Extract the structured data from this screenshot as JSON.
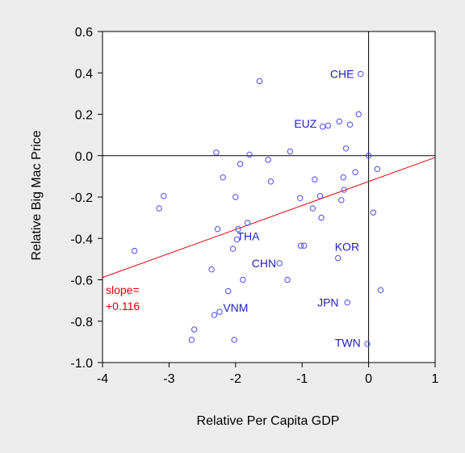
{
  "chart_data": {
    "type": "scatter",
    "xlabel": "Relative Per Capita GDP",
    "ylabel": "Relative Big Mac Price",
    "xlim": [
      -4,
      1
    ],
    "ylim": [
      -1.0,
      0.6
    ],
    "x_ticks": [
      "-4",
      "-3",
      "-2",
      "-1",
      "0",
      "1"
    ],
    "y_ticks": [
      "-1.0",
      "-0.8",
      "-0.6",
      "-0.4",
      "-0.2",
      "0.0",
      "0.2",
      "0.4",
      "0.6"
    ],
    "points": [
      {
        "x": -3.52,
        "y": -0.46
      },
      {
        "x": -3.15,
        "y": -0.255
      },
      {
        "x": -3.08,
        "y": -0.195
      },
      {
        "x": -2.66,
        "y": -0.89
      },
      {
        "x": -2.62,
        "y": -0.84
      },
      {
        "x": -2.36,
        "y": -0.55
      },
      {
        "x": -2.32,
        "y": -0.77
      },
      {
        "x": -2.29,
        "y": 0.015
      },
      {
        "x": -2.27,
        "y": -0.355
      },
      {
        "x": -2.24,
        "y": -0.755
      },
      {
        "x": -2.19,
        "y": -0.105
      },
      {
        "x": -2.11,
        "y": -0.655
      },
      {
        "x": -2.04,
        "y": -0.45
      },
      {
        "x": -2.02,
        "y": -0.89
      },
      {
        "x": -2.0,
        "y": -0.2
      },
      {
        "x": -1.98,
        "y": -0.405
      },
      {
        "x": -1.96,
        "y": -0.355
      },
      {
        "x": -1.93,
        "y": -0.04
      },
      {
        "x": -1.89,
        "y": -0.6
      },
      {
        "x": -1.82,
        "y": -0.325
      },
      {
        "x": -1.79,
        "y": 0.005
      },
      {
        "x": -1.64,
        "y": 0.36
      },
      {
        "x": -1.51,
        "y": -0.02
      },
      {
        "x": -1.47,
        "y": -0.125
      },
      {
        "x": -1.34,
        "y": -0.52
      },
      {
        "x": -1.22,
        "y": -0.6
      },
      {
        "x": -1.18,
        "y": 0.02
      },
      {
        "x": -1.03,
        "y": -0.205
      },
      {
        "x": -1.02,
        "y": -0.435
      },
      {
        "x": -0.97,
        "y": -0.435
      },
      {
        "x": -0.84,
        "y": -0.255
      },
      {
        "x": -0.81,
        "y": -0.115
      },
      {
        "x": -0.73,
        "y": -0.195
      },
      {
        "x": -0.71,
        "y": -0.3
      },
      {
        "x": -0.69,
        "y": 0.14
      },
      {
        "x": -0.61,
        "y": 0.145
      },
      {
        "x": -0.46,
        "y": -0.495
      },
      {
        "x": -0.44,
        "y": 0.165
      },
      {
        "x": -0.41,
        "y": -0.215
      },
      {
        "x": -0.38,
        "y": -0.105
      },
      {
        "x": -0.37,
        "y": -0.165
      },
      {
        "x": -0.34,
        "y": 0.035
      },
      {
        "x": -0.32,
        "y": -0.71
      },
      {
        "x": -0.28,
        "y": 0.15
      },
      {
        "x": -0.2,
        "y": -0.08
      },
      {
        "x": -0.15,
        "y": 0.2
      },
      {
        "x": -0.12,
        "y": 0.395
      },
      {
        "x": -0.02,
        "y": -0.91
      },
      {
        "x": 0.0,
        "y": 0.0
      },
      {
        "x": 0.07,
        "y": -0.275
      },
      {
        "x": 0.13,
        "y": -0.065
      },
      {
        "x": 0.18,
        "y": -0.65
      }
    ],
    "labels": [
      {
        "text": "CHE",
        "x": -0.22,
        "y": 0.395
      },
      {
        "text": "EUZ",
        "x": -0.78,
        "y": 0.155
      },
      {
        "text": "THA",
        "x": -1.64,
        "y": -0.39
      },
      {
        "text": "KOR",
        "x": -0.14,
        "y": -0.44
      },
      {
        "text": "CHN",
        "x": -1.39,
        "y": -0.52
      },
      {
        "text": "JPN",
        "x": -0.45,
        "y": -0.71
      },
      {
        "text": "VNM",
        "x": -1.81,
        "y": -0.735
      },
      {
        "text": "TWN",
        "x": -0.12,
        "y": -0.905
      }
    ],
    "regression": {
      "slope": 0.116,
      "intercept": -0.125
    },
    "annotation": {
      "line1": "slope=",
      "line2": "+0.116"
    },
    "colors": {
      "points": "#4a4af2",
      "labels": "#1f1fbf",
      "fit": "#e00000",
      "background": "#ffffff",
      "page": "#ececec"
    }
  }
}
